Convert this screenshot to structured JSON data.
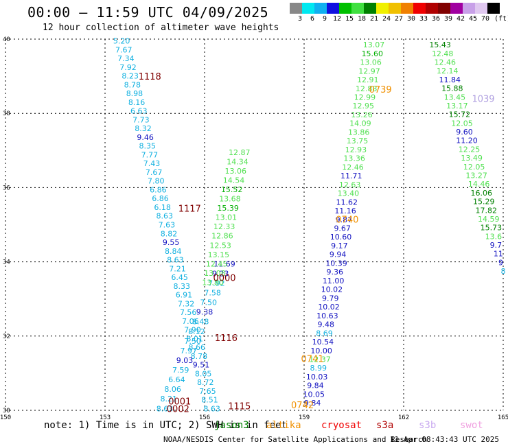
{
  "header": {
    "title": "00:00 – 11:59 UTC 04/09/2025",
    "subtitle": "12 hour collection of altimeter wave heights"
  },
  "legend": {
    "unit": "(ft)",
    "bins": [
      {
        "label": "3",
        "color": "#888888"
      },
      {
        "label": "6",
        "color": "#00e8f0"
      },
      {
        "label": "9",
        "color": "#10b0f0"
      },
      {
        "label": "12",
        "color": "#1010e0"
      },
      {
        "label": "15",
        "color": "#00c000"
      },
      {
        "label": "18",
        "color": "#40e040"
      },
      {
        "label": "21",
        "color": "#008000"
      },
      {
        "label": "24",
        "color": "#f0f000"
      },
      {
        "label": "27",
        "color": "#f0c000"
      },
      {
        "label": "30",
        "color": "#f08000"
      },
      {
        "label": "33",
        "color": "#f00000"
      },
      {
        "label": "36",
        "color": "#b00000"
      },
      {
        "label": "39",
        "color": "#800000"
      },
      {
        "label": "42",
        "color": "#a000a0"
      },
      {
        "label": "45",
        "color": "#c8a0e8"
      },
      {
        "label": "70",
        "color": "#e0c8f0"
      },
      {
        "label": "",
        "color": "#000000"
      }
    ]
  },
  "axes": {
    "x_ticks": [
      "150",
      "153",
      "156",
      "159",
      "162",
      "165"
    ],
    "y_ticks": [
      "40",
      "38",
      "36",
      "34",
      "32",
      "30"
    ]
  },
  "colors": {
    "c6": "#10b0e0",
    "c12": "#1010c0",
    "c15": "#50e050",
    "c18": "#00b000",
    "c21": "#008000",
    "time": "#800000",
    "time_orange": "#f09000",
    "time_lilac": "#b0a0e0"
  },
  "tracks": [
    {
      "lon_start": 153.5,
      "lat_start": 39.95,
      "lon_end": 156.22,
      "lat_end": 30.05,
      "values": [
        {
          "v": "5.20",
          "c": "c6"
        },
        {
          "v": "7.67",
          "c": "c6"
        },
        {
          "v": "7.34",
          "c": "c6"
        },
        {
          "v": "7.92",
          "c": "c6"
        },
        {
          "v": "8.23",
          "c": "c6"
        },
        {
          "v": "8.78",
          "c": "c6"
        },
        {
          "v": "8.98",
          "c": "c6"
        },
        {
          "v": "8.16",
          "c": "c6"
        },
        {
          "v": "6.63",
          "c": "c6"
        },
        {
          "v": "7.73",
          "c": "c6"
        },
        {
          "v": "8.32",
          "c": "c6"
        },
        {
          "v": "9.46",
          "c": "c12"
        },
        {
          "v": "8.35",
          "c": "c6"
        },
        {
          "v": "7.77",
          "c": "c6"
        },
        {
          "v": "7.43",
          "c": "c6"
        },
        {
          "v": "7.67",
          "c": "c6"
        },
        {
          "v": "7.80",
          "c": "c6"
        },
        {
          "v": "6.86",
          "c": "c6"
        },
        {
          "v": "6.86",
          "c": "c6"
        },
        {
          "v": "6.18",
          "c": "c6"
        },
        {
          "v": "8.63",
          "c": "c6"
        },
        {
          "v": "7.63",
          "c": "c6"
        },
        {
          "v": "8.82",
          "c": "c6"
        },
        {
          "v": "9.55",
          "c": "c12"
        },
        {
          "v": "8.84",
          "c": "c6"
        },
        {
          "v": "8.63",
          "c": "c6"
        },
        {
          "v": "7.21",
          "c": "c6"
        },
        {
          "v": "6.45",
          "c": "c6"
        },
        {
          "v": "8.33",
          "c": "c6"
        },
        {
          "v": "6.91",
          "c": "c6"
        },
        {
          "v": "7.32",
          "c": "c6"
        },
        {
          "v": "7.56",
          "c": "c6"
        },
        {
          "v": "7.06",
          "c": "c6"
        },
        {
          "v": "7.90",
          "c": "c6"
        },
        {
          "v": "8.01",
          "c": "c6"
        },
        {
          "v": "8.66",
          "c": "c6"
        },
        {
          "v": "8.78",
          "c": "c6"
        },
        {
          "v": "9.51",
          "c": "c12"
        },
        {
          "v": "8.05",
          "c": "c6"
        },
        {
          "v": "8.72",
          "c": "c6"
        },
        {
          "v": "7.65",
          "c": "c6"
        },
        {
          "v": "8.51",
          "c": "c6"
        },
        {
          "v": "8.63",
          "c": "c6"
        }
      ]
    },
    {
      "lon_start": 156.6,
      "lat_start": 33.95,
      "lon_end": 154.8,
      "lat_end": 30.05,
      "values": [
        {
          "v": "11.69",
          "c": "c12"
        },
        {
          "v": "9.23",
          "c": "c12"
        },
        {
          "v": "7.92",
          "c": "c6"
        },
        {
          "v": "7.58",
          "c": "c6"
        },
        {
          "v": "7.50",
          "c": "c6"
        },
        {
          "v": "9.38",
          "c": "c12"
        },
        {
          "v": "8.48",
          "c": "c6"
        },
        {
          "v": "8.12",
          "c": "c6"
        },
        {
          "v": "7.50",
          "c": "c6"
        },
        {
          "v": "7.97",
          "c": "c6"
        },
        {
          "v": "9.03",
          "c": "c12"
        },
        {
          "v": "7.59",
          "c": "c6"
        },
        {
          "v": "6.64",
          "c": "c6"
        },
        {
          "v": "8.06",
          "c": "c6"
        },
        {
          "v": "8.21",
          "c": "c6"
        },
        {
          "v": "8.63",
          "c": "c6"
        }
      ]
    },
    {
      "lon_start": 157.05,
      "lat_start": 36.95,
      "lon_end": 156.25,
      "lat_end": 33.45,
      "values": [
        {
          "v": "12.87",
          "c": "c15"
        },
        {
          "v": "14.34",
          "c": "c15"
        },
        {
          "v": "13.06",
          "c": "c15"
        },
        {
          "v": "14.54",
          "c": "c15"
        },
        {
          "v": "15.52",
          "c": "c18"
        },
        {
          "v": "13.68",
          "c": "c15"
        },
        {
          "v": "15.39",
          "c": "c18"
        },
        {
          "v": "13.01",
          "c": "c15"
        },
        {
          "v": "12.33",
          "c": "c15"
        },
        {
          "v": "12.86",
          "c": "c15"
        },
        {
          "v": "12.53",
          "c": "c15"
        },
        {
          "v": "13.15",
          "c": "c15"
        },
        {
          "v": "12.45",
          "c": "c15"
        },
        {
          "v": "13.08",
          "c": "c15"
        },
        {
          "v": "13.80",
          "c": "c15"
        }
      ]
    },
    {
      "lon_start": 161.1,
      "lat_start": 39.85,
      "lon_end": 159.25,
      "lat_end": 30.2,
      "values": [
        {
          "v": "13.07",
          "c": "c15"
        },
        {
          "v": "15.60",
          "c": "c18"
        },
        {
          "v": "13.06",
          "c": "c15"
        },
        {
          "v": "12.97",
          "c": "c15"
        },
        {
          "v": "12.91",
          "c": "c15"
        },
        {
          "v": "12.88",
          "c": "c15"
        },
        {
          "v": "12.99",
          "c": "c15"
        },
        {
          "v": "12.95",
          "c": "c15"
        },
        {
          "v": "13.26",
          "c": "c15"
        },
        {
          "v": "14.09",
          "c": "c15"
        },
        {
          "v": "13.86",
          "c": "c15"
        },
        {
          "v": "13.75",
          "c": "c15"
        },
        {
          "v": "12.93",
          "c": "c15"
        },
        {
          "v": "13.36",
          "c": "c15"
        },
        {
          "v": "12.46",
          "c": "c15"
        },
        {
          "v": "11.71",
          "c": "c12"
        },
        {
          "v": "12.63",
          "c": "c15"
        },
        {
          "v": "13.40",
          "c": "c15"
        },
        {
          "v": "11.62",
          "c": "c12"
        },
        {
          "v": "11.16",
          "c": "c12"
        },
        {
          "v": "9.87",
          "c": "c12"
        },
        {
          "v": "9.67",
          "c": "c12"
        },
        {
          "v": "10.60",
          "c": "c12"
        },
        {
          "v": "9.17",
          "c": "c12"
        },
        {
          "v": "9.94",
          "c": "c12"
        },
        {
          "v": "10.39",
          "c": "c12"
        },
        {
          "v": "9.36",
          "c": "c12"
        },
        {
          "v": "11.00",
          "c": "c12"
        },
        {
          "v": "10.02",
          "c": "c12"
        },
        {
          "v": "9.79",
          "c": "c12"
        },
        {
          "v": "10.02",
          "c": "c12"
        },
        {
          "v": "10.63",
          "c": "c12"
        },
        {
          "v": "9.48",
          "c": "c12"
        },
        {
          "v": "8.69",
          "c": "c6"
        },
        {
          "v": "10.54",
          "c": "c12"
        },
        {
          "v": "10.00",
          "c": "c12"
        },
        {
          "v": "12.37",
          "c": "c15"
        },
        {
          "v": "8.99",
          "c": "c6"
        },
        {
          "v": "10.03",
          "c": "c12"
        },
        {
          "v": "9.84",
          "c": "c12"
        },
        {
          "v": "10.05",
          "c": "c12"
        },
        {
          "v": "9.84",
          "c": "c12"
        }
      ]
    },
    {
      "lon_start": 163.1,
      "lat_start": 39.85,
      "lon_end": 165.0,
      "lat_end": 33.75,
      "values": [
        {
          "v": "15.43",
          "c": "c21"
        },
        {
          "v": "12.48",
          "c": "c15"
        },
        {
          "v": "12.46",
          "c": "c15"
        },
        {
          "v": "12.14",
          "c": "c15"
        },
        {
          "v": "11.84",
          "c": "c12"
        },
        {
          "v": "15.88",
          "c": "c21"
        },
        {
          "v": "13.45",
          "c": "c15"
        },
        {
          "v": "13.17",
          "c": "c15"
        },
        {
          "v": "15.72",
          "c": "c21"
        },
        {
          "v": "12.05",
          "c": "c15"
        },
        {
          "v": "9.60",
          "c": "c12"
        },
        {
          "v": "11.20",
          "c": "c12"
        },
        {
          "v": "12.25",
          "c": "c15"
        },
        {
          "v": "13.49",
          "c": "c15"
        },
        {
          "v": "12.05",
          "c": "c15"
        },
        {
          "v": "13.27",
          "c": "c15"
        },
        {
          "v": "14.46",
          "c": "c15"
        },
        {
          "v": "16.06",
          "c": "c21"
        },
        {
          "v": "15.29",
          "c": "c21"
        },
        {
          "v": "17.82",
          "c": "c21"
        },
        {
          "v": "14.59",
          "c": "c15"
        },
        {
          "v": "15.73",
          "c": "c21"
        },
        {
          "v": "13.6",
          "c": "c15"
        },
        {
          "v": "9.7",
          "c": "c12"
        },
        {
          "v": "11",
          "c": "c12"
        },
        {
          "v": "9",
          "c": "c12"
        },
        {
          "v": "8",
          "c": "c6"
        }
      ]
    }
  ],
  "pass_times": [
    {
      "t": "1118",
      "lon": 154.35,
      "lat": 39.0,
      "c": "time"
    },
    {
      "t": "1117",
      "lon": 155.55,
      "lat": 35.44,
      "c": "time"
    },
    {
      "t": "0000",
      "lon": 156.6,
      "lat": 33.58,
      "c": "time"
    },
    {
      "t": "1116",
      "lon": 156.65,
      "lat": 31.96,
      "c": "time"
    },
    {
      "t": "0001",
      "lon": 155.25,
      "lat": 30.25,
      "c": "time"
    },
    {
      "t": "0002",
      "lon": 155.2,
      "lat": 30.05,
      "c": "time"
    },
    {
      "t": "1115",
      "lon": 157.05,
      "lat": 30.12,
      "c": "time"
    },
    {
      "t": "0739",
      "lon": 161.3,
      "lat": 38.65,
      "c": "time_orange"
    },
    {
      "t": "0740",
      "lon": 160.3,
      "lat": 35.15,
      "c": "time_orange"
    },
    {
      "t": "0741",
      "lon": 159.25,
      "lat": 31.4,
      "c": "time_orange"
    },
    {
      "t": "0742",
      "lon": 158.95,
      "lat": 30.15,
      "c": "time_orange"
    },
    {
      "t": "1039",
      "lon": 164.4,
      "lat": 38.4,
      "c": "time_lilac"
    }
  ],
  "footer": {
    "note": "note: 1) Time is in UTC; 2) SWH is in feet",
    "satellites": [
      {
        "name": "jason3",
        "color": "#008000",
        "x": 312
      },
      {
        "name": "altika",
        "color": "#f09000",
        "x": 388
      },
      {
        "name": "cryosat",
        "color": "#f00000",
        "x": 468
      },
      {
        "name": "s3a",
        "color": "#b00000",
        "x": 548
      },
      {
        "name": "s3b",
        "color": "#c8a8f0",
        "x": 610
      },
      {
        "name": "swot",
        "color": "#f0a0e0",
        "x": 670
      }
    ],
    "credit": "NOAA/NESDIS Center for Satellite Applications and Research",
    "timestamp": "11 Apr 08:43:43 UTC 2025"
  }
}
